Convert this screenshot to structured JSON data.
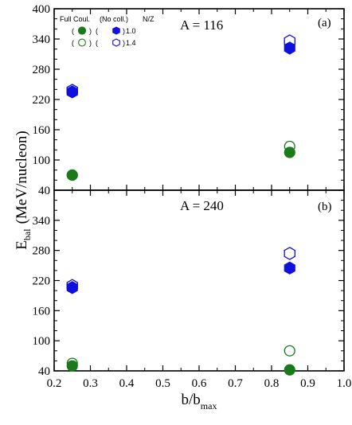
{
  "chart_data": [
    {
      "type": "scatter",
      "panel_tag": "(a)",
      "annotation": "A = 116",
      "xlim": [
        0.2,
        1.0
      ],
      "ylim": [
        40,
        400
      ],
      "yticks": [
        40,
        100,
        160,
        220,
        280,
        340,
        400
      ],
      "series": [
        {
          "name": "Full Coul. N/Z 1.0",
          "marker": "circle",
          "filled": true,
          "color": "#1a7a1a",
          "points": [
            [
              0.25,
              70
            ],
            [
              0.85,
              115
            ]
          ]
        },
        {
          "name": "Full Coul. N/Z 1.4",
          "marker": "circle",
          "filled": false,
          "color": "#1a7a1a",
          "points": [
            [
              0.25,
              70
            ],
            [
              0.85,
              127
            ]
          ]
        },
        {
          "name": "No coll. N/Z 1.0",
          "marker": "hexagon",
          "filled": true,
          "color": "#1010dd",
          "points": [
            [
              0.25,
              235
            ],
            [
              0.85,
              322
            ]
          ]
        },
        {
          "name": "No coll. N/Z 1.4",
          "marker": "hexagon",
          "filled": false,
          "color": "#1010dd",
          "points": [
            [
              0.25,
              238
            ],
            [
              0.85,
              336
            ]
          ]
        }
      ]
    },
    {
      "type": "scatter",
      "panel_tag": "(b)",
      "annotation": "A = 240",
      "xlim": [
        0.2,
        1.0
      ],
      "ylim": [
        40,
        400
      ],
      "yticks": [
        40,
        100,
        160,
        220,
        280,
        340
      ],
      "xticks": [
        0.2,
        0.3,
        0.4,
        0.5,
        0.6,
        0.7,
        0.8,
        0.9,
        1.0
      ],
      "xtick_labels": [
        "0.2",
        "0.3",
        "0.4",
        "0.5",
        "0.6",
        "0.7",
        "0.8",
        "0.9",
        "1.0"
      ],
      "series": [
        {
          "name": "Full Coul. N/Z 1.0",
          "marker": "circle",
          "filled": true,
          "color": "#1a7a1a",
          "points": [
            [
              0.25,
              50
            ],
            [
              0.85,
              42
            ]
          ]
        },
        {
          "name": "Full Coul. N/Z 1.4",
          "marker": "circle",
          "filled": false,
          "color": "#1a7a1a",
          "points": [
            [
              0.25,
              55
            ],
            [
              0.85,
              80
            ]
          ]
        },
        {
          "name": "No coll. N/Z 1.0",
          "marker": "hexagon",
          "filled": true,
          "color": "#1010dd",
          "points": [
            [
              0.25,
              206
            ],
            [
              0.85,
              245
            ]
          ]
        },
        {
          "name": "No coll. N/Z 1.4",
          "marker": "hexagon",
          "filled": false,
          "color": "#1010dd",
          "points": [
            [
              0.25,
              210
            ],
            [
              0.85,
              274
            ]
          ]
        }
      ]
    }
  ],
  "axes": {
    "ylabel_main": "E",
    "ylabel_sub": "bal",
    "ylabel_unit": "(MeV/nucleon)",
    "xlabel_main": "b/b",
    "xlabel_sub": "max"
  },
  "legend": {
    "header_full": "Full Coul.",
    "header_nocoll": "(No coll.)",
    "header_nz": "N/Z",
    "open_paren": "(",
    "close_paren": ")",
    "nz_values": [
      "1.0",
      "1.4"
    ]
  },
  "colors": {
    "full_coulomb": "#1a7a1a",
    "no_collision": "#1010dd"
  }
}
